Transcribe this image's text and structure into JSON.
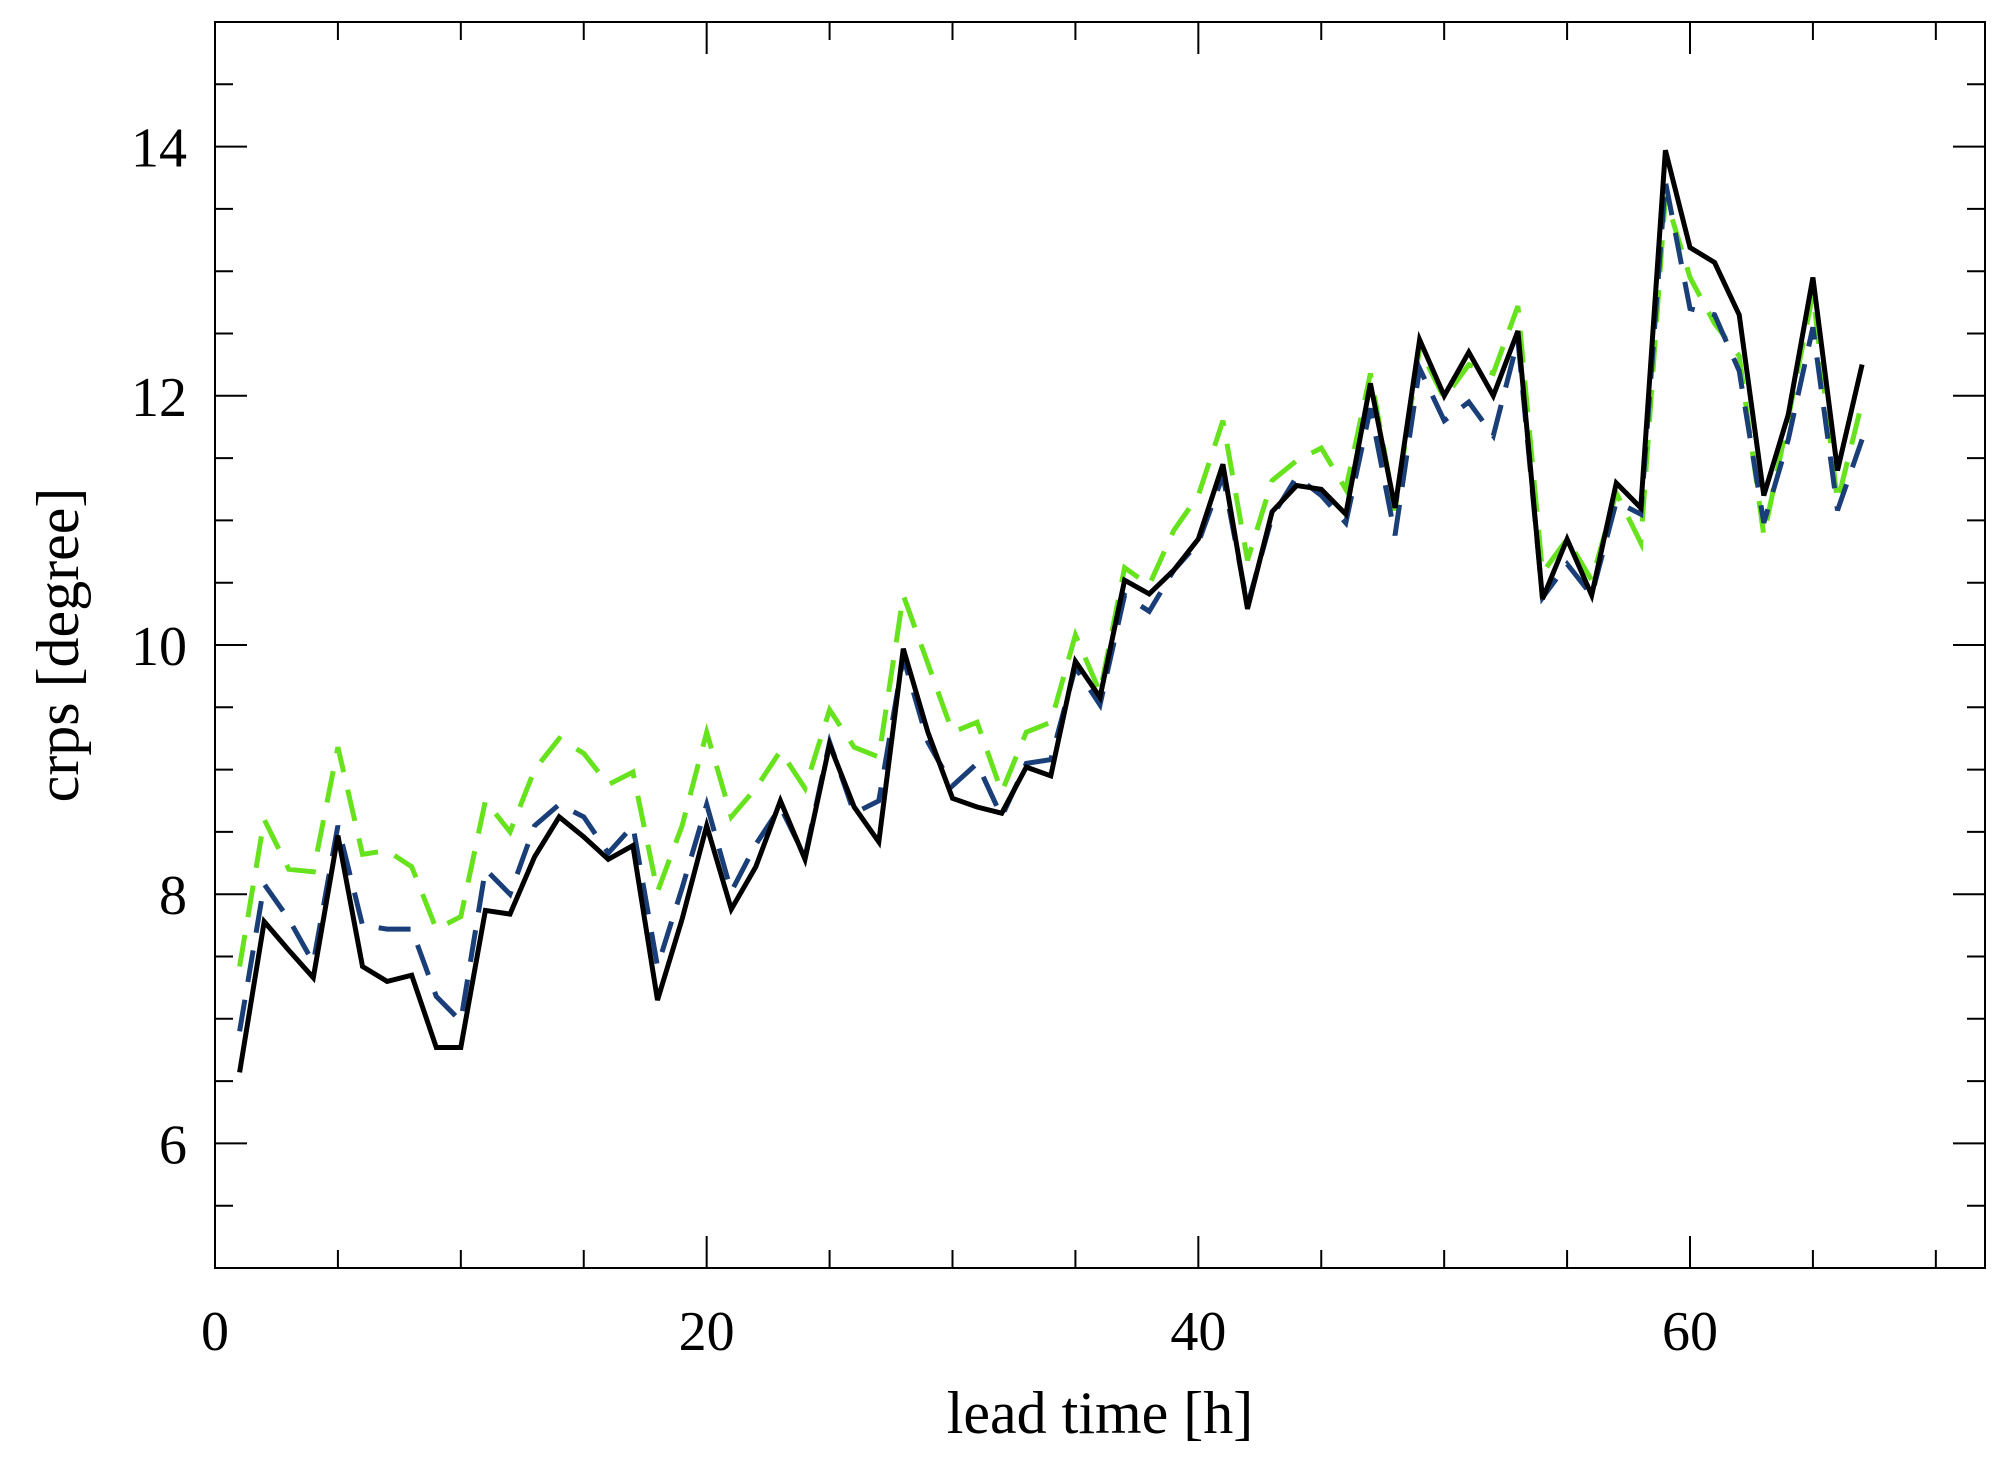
{
  "chart_data": {
    "type": "line",
    "xlabel": "lead time [h]",
    "ylabel": "crps [degree]",
    "xlim": [
      0,
      72
    ],
    "ylim": [
      5,
      15
    ],
    "xticks": [
      0,
      20,
      40,
      60
    ],
    "yticks": [
      6,
      8,
      10,
      12,
      14
    ],
    "x_minor_step": 5,
    "y_minor_step": 0.5,
    "grid": false,
    "x": [
      1,
      2,
      3,
      4,
      5,
      6,
      7,
      8,
      9,
      10,
      11,
      12,
      13,
      14,
      15,
      16,
      17,
      18,
      19,
      20,
      21,
      22,
      23,
      24,
      25,
      26,
      27,
      28,
      29,
      30,
      31,
      32,
      33,
      34,
      35,
      36,
      37,
      38,
      39,
      40,
      41,
      42,
      43,
      44,
      45,
      46,
      47,
      48,
      49,
      50,
      51,
      52,
      53,
      54,
      55,
      56,
      57,
      58,
      59,
      60,
      61,
      62,
      63,
      64,
      65,
      66,
      67
    ],
    "series": [
      {
        "color": "#000000",
        "dash": "solid",
        "values": [
          6.57,
          7.78,
          7.55,
          7.33,
          8.47,
          7.42,
          7.3,
          7.35,
          6.77,
          6.77,
          7.87,
          7.84,
          8.3,
          8.62,
          8.46,
          8.28,
          8.39,
          7.15,
          7.8,
          8.55,
          7.88,
          8.22,
          8.75,
          8.28,
          9.2,
          8.7,
          8.42,
          9.97,
          9.3,
          8.77,
          8.7,
          8.65,
          9.02,
          8.95,
          9.87,
          9.58,
          10.52,
          10.41,
          10.6,
          10.85,
          11.45,
          10.29,
          11.07,
          11.28,
          11.25,
          11.05,
          12.1,
          11.1,
          12.45,
          12.0,
          12.35,
          12.0,
          12.52,
          10.37,
          10.85,
          10.4,
          11.3,
          11.1,
          13.97,
          13.19,
          13.07,
          12.65,
          11.2,
          11.85,
          12.95,
          11.4,
          12.25
        ]
      },
      {
        "color": "#1a3f78",
        "dash": "dashed",
        "values": [
          6.9,
          8.08,
          7.8,
          7.45,
          8.55,
          7.75,
          7.72,
          7.72,
          7.18,
          6.98,
          8.2,
          8.0,
          8.55,
          8.72,
          8.62,
          8.33,
          8.55,
          7.42,
          8.05,
          8.72,
          8.02,
          8.4,
          8.7,
          8.3,
          9.22,
          8.65,
          8.75,
          9.9,
          9.22,
          8.87,
          9.05,
          8.62,
          9.05,
          9.08,
          9.82,
          9.52,
          10.4,
          10.27,
          10.6,
          10.82,
          11.36,
          10.32,
          11.03,
          11.35,
          11.2,
          10.98,
          11.9,
          10.88,
          12.22,
          11.8,
          11.95,
          11.68,
          12.45,
          10.38,
          10.65,
          10.4,
          11.15,
          11.05,
          13.72,
          12.7,
          12.65,
          12.2,
          10.98,
          11.65,
          12.55,
          11.08,
          11.65
        ]
      },
      {
        "color": "#66e31c",
        "dash": "dashed",
        "values": [
          7.42,
          8.6,
          8.2,
          8.18,
          9.18,
          8.32,
          8.35,
          8.22,
          7.72,
          7.82,
          8.75,
          8.5,
          9.0,
          9.25,
          9.13,
          8.88,
          8.98,
          8.02,
          8.55,
          9.3,
          8.62,
          8.85,
          9.15,
          8.85,
          9.48,
          9.18,
          9.1,
          10.4,
          9.85,
          9.3,
          9.38,
          8.82,
          9.3,
          9.38,
          10.08,
          9.62,
          10.62,
          10.48,
          10.92,
          11.2,
          11.8,
          10.68,
          11.32,
          11.48,
          11.58,
          11.25,
          12.18,
          11.08,
          12.38,
          11.98,
          12.25,
          12.18,
          12.72,
          10.58,
          10.85,
          10.52,
          11.22,
          10.82,
          13.6,
          12.95,
          12.58,
          12.32,
          10.88,
          11.82,
          12.82,
          11.15,
          11.95
        ]
      }
    ]
  }
}
